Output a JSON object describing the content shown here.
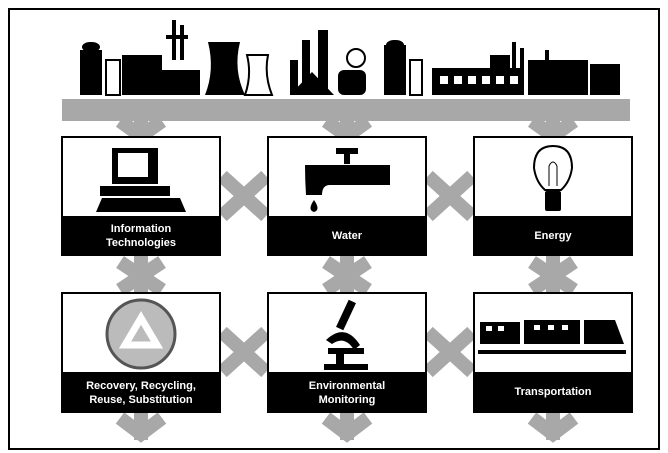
{
  "nodes": [
    {
      "label": [
        "Information",
        "Technologies"
      ]
    },
    {
      "label": [
        "Water"
      ]
    },
    {
      "label": [
        "Energy"
      ]
    },
    {
      "label": [
        "Recovery, Recycling,",
        "Reuse, Substitution"
      ]
    },
    {
      "label": [
        "Environmental",
        "Monitoring"
      ]
    },
    {
      "label": [
        "Transportation"
      ]
    }
  ]
}
